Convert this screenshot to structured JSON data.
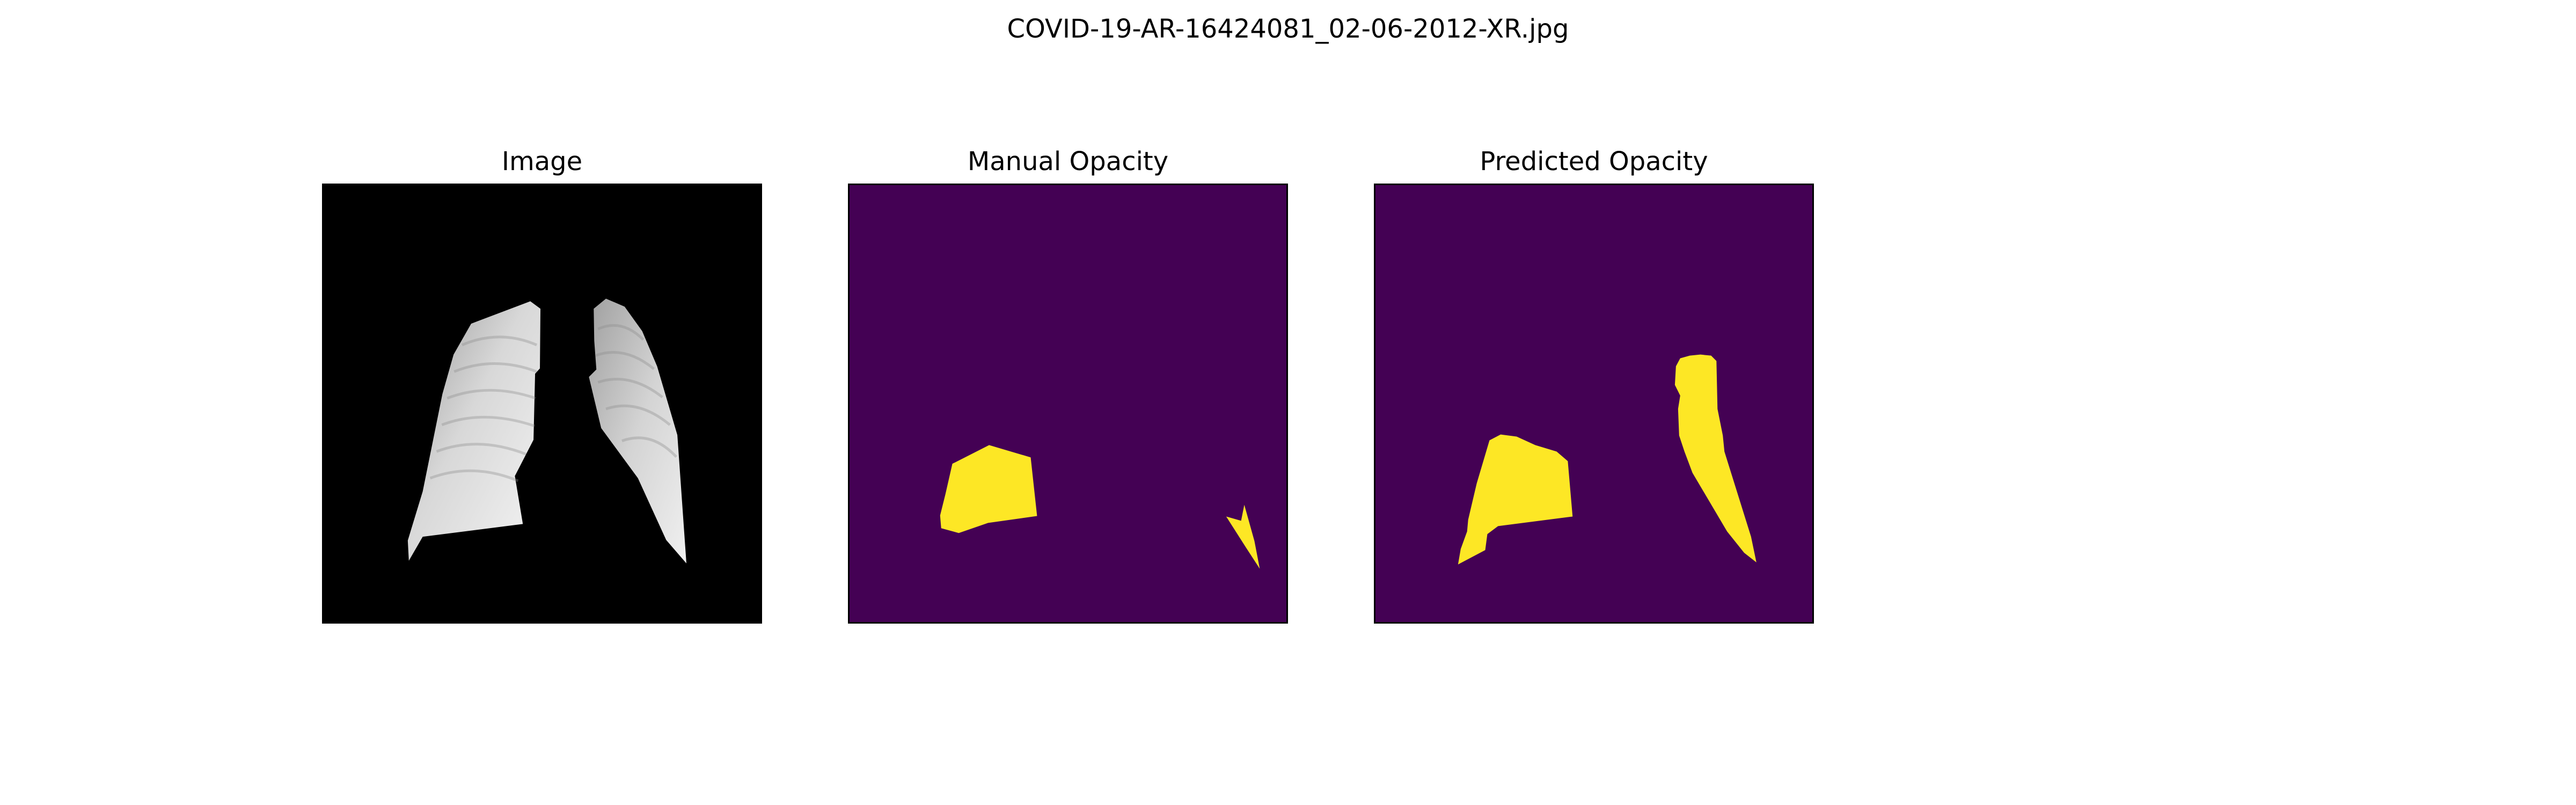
{
  "figure": {
    "title": "COVID-19-AR-16424081_02-06-2012-XR.jpg"
  },
  "panels": [
    {
      "title": "Image"
    },
    {
      "title": "Manual Opacity"
    },
    {
      "title": "Predicted Opacity"
    }
  ],
  "colors": {
    "page_background": "#ffffff",
    "image_background": "#000000",
    "lung_light": "#f2f2f2",
    "lung_mid": "#bdbdbd",
    "mask_background": "#440154",
    "mask_foreground": "#fde725"
  }
}
